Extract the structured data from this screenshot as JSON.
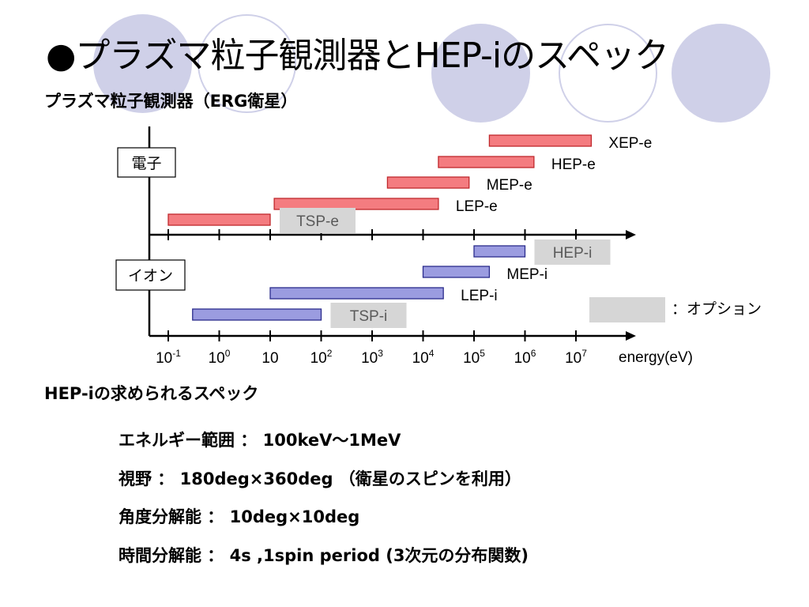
{
  "slide": {
    "title": "●プラズマ粒子観測器とHEP-iのスペック",
    "subtitle": "プラズマ粒子観測器（ERG衛星）",
    "spec_heading": "HEP-iの求められるスペック",
    "specs": [
      "エネルギー範囲 ： 100keV～1MeV",
      "視野 ： 180deg×360deg （衛星のスピンを利用）",
      "角度分解能 ： 10deg×10deg",
      "時間分解能 ： 4s ,1spin period (3次元の分布関数)"
    ]
  },
  "diagram": {
    "groups": {
      "electron": "電子",
      "ion": "イオン"
    },
    "axis": {
      "unit_label": "energy(eV)",
      "tick_labels": [
        {
          "exp": -1,
          "base": "10",
          "sup": "-1"
        },
        {
          "exp": 0,
          "base": "10",
          "sup": "0"
        },
        {
          "exp": 1,
          "base": "10",
          "sup": ""
        },
        {
          "exp": 2,
          "base": "10",
          "sup": "2"
        },
        {
          "exp": 3,
          "base": "10",
          "sup": "3"
        },
        {
          "exp": 4,
          "base": "10",
          "sup": "4"
        },
        {
          "exp": 5,
          "base": "10",
          "sup": "5"
        },
        {
          "exp": 6,
          "base": "10",
          "sup": "6"
        },
        {
          "exp": 7,
          "base": "10",
          "sup": "7"
        }
      ]
    },
    "electron_bars": [
      {
        "name": "XEP-e",
        "from_eV": 200000,
        "to_eV": 20000000,
        "optional": false
      },
      {
        "name": "HEP-e",
        "from_eV": 20000,
        "to_eV": 1500000,
        "optional": false
      },
      {
        "name": "MEP-e",
        "from_eV": 2000,
        "to_eV": 80000,
        "optional": false
      },
      {
        "name": "LEP-e",
        "from_eV": 12,
        "to_eV": 20000,
        "optional": false
      },
      {
        "name": "TSP-e",
        "from_eV": 0.1,
        "to_eV": 10,
        "optional": true
      }
    ],
    "ion_bars": [
      {
        "name": "HEP-i",
        "from_eV": 100000,
        "to_eV": 1000000,
        "optional": true
      },
      {
        "name": "MEP-i",
        "from_eV": 10000,
        "to_eV": 200000,
        "optional": false
      },
      {
        "name": "LEP-i",
        "from_eV": 10,
        "to_eV": 25000,
        "optional": false
      },
      {
        "name": "TSP-i",
        "from_eV": 0.3,
        "to_eV": 100,
        "optional": true
      }
    ],
    "legend": {
      "option_label": "：オプション"
    },
    "colors": {
      "electron_fill": "#f47c80",
      "electron_stroke": "#c0282c",
      "ion_fill": "#9b9ce0",
      "ion_stroke": "#2b2c8c",
      "option_box": "#d6d6d6",
      "option_text": "#5a5a5a",
      "circle": "#cfd0e8"
    }
  }
}
